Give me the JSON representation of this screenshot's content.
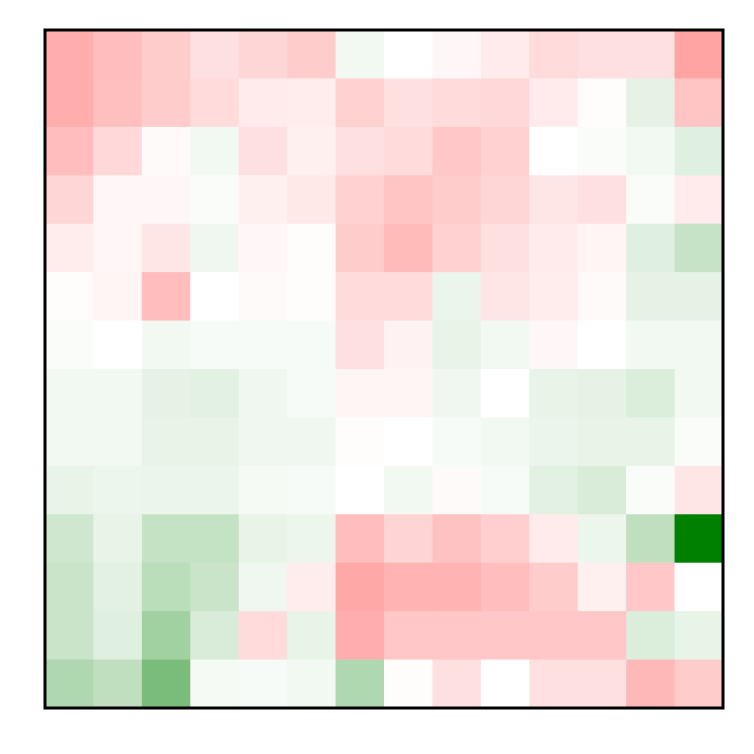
{
  "chart_data": {
    "type": "heatmap",
    "rows": 14,
    "cols": 14,
    "vmin": -1,
    "vmax": 1,
    "colormap": {
      "negative": "#ff0000",
      "neutral": "#ffffff",
      "positive": "#008000"
    },
    "grid": false,
    "values": [
      [
        -0.32,
        -0.26,
        -0.2,
        -0.12,
        -0.16,
        -0.2,
        0.05,
        0.0,
        -0.03,
        -0.08,
        -0.14,
        -0.12,
        -0.12,
        -0.36
      ],
      [
        -0.32,
        -0.25,
        -0.2,
        -0.14,
        -0.08,
        -0.07,
        -0.18,
        -0.12,
        -0.14,
        -0.15,
        -0.08,
        -0.01,
        0.1,
        -0.23
      ],
      [
        -0.26,
        -0.15,
        -0.02,
        0.05,
        -0.12,
        -0.06,
        -0.12,
        -0.14,
        -0.22,
        -0.18,
        0.0,
        0.02,
        0.05,
        0.12
      ],
      [
        -0.16,
        -0.03,
        -0.03,
        0.02,
        -0.06,
        -0.09,
        -0.18,
        -0.23,
        -0.2,
        -0.16,
        -0.1,
        -0.12,
        0.02,
        -0.08
      ],
      [
        -0.07,
        -0.03,
        -0.1,
        0.06,
        -0.03,
        -0.01,
        -0.2,
        -0.27,
        -0.18,
        -0.12,
        -0.08,
        -0.04,
        0.12,
        0.22
      ],
      [
        -0.01,
        -0.04,
        -0.26,
        0.0,
        -0.02,
        -0.01,
        -0.14,
        -0.14,
        0.08,
        -0.1,
        -0.07,
        -0.02,
        0.1,
        0.1
      ],
      [
        0.02,
        0.0,
        0.05,
        0.03,
        0.03,
        0.03,
        -0.12,
        -0.05,
        0.09,
        0.05,
        -0.03,
        0.0,
        0.05,
        0.05
      ],
      [
        0.05,
        0.05,
        0.1,
        0.11,
        0.06,
        0.03,
        -0.04,
        -0.04,
        0.06,
        0.0,
        0.09,
        0.1,
        0.14,
        0.05
      ],
      [
        0.05,
        0.05,
        0.09,
        0.09,
        0.06,
        0.06,
        -0.01,
        0.0,
        0.03,
        0.05,
        0.08,
        0.09,
        0.09,
        0.02
      ],
      [
        0.09,
        0.07,
        0.08,
        0.08,
        0.04,
        0.03,
        0.0,
        0.05,
        -0.02,
        0.03,
        0.11,
        0.15,
        0.02,
        -0.1
      ],
      [
        0.19,
        0.09,
        0.23,
        0.23,
        0.09,
        0.07,
        -0.26,
        -0.17,
        -0.24,
        -0.19,
        -0.08,
        0.07,
        0.25,
        1.0
      ],
      [
        0.21,
        0.11,
        0.27,
        0.21,
        0.06,
        -0.07,
        -0.34,
        -0.3,
        -0.3,
        -0.26,
        -0.2,
        -0.06,
        -0.22,
        0.0
      ],
      [
        0.21,
        0.12,
        0.37,
        0.15,
        -0.14,
        0.09,
        -0.32,
        -0.22,
        -0.22,
        -0.22,
        -0.22,
        -0.22,
        0.14,
        0.09
      ],
      [
        0.31,
        0.25,
        0.52,
        0.04,
        0.03,
        0.05,
        0.31,
        -0.01,
        -0.12,
        0.0,
        -0.12,
        -0.12,
        -0.28,
        -0.2
      ]
    ],
    "title": "",
    "xlabel": "",
    "ylabel": ""
  }
}
